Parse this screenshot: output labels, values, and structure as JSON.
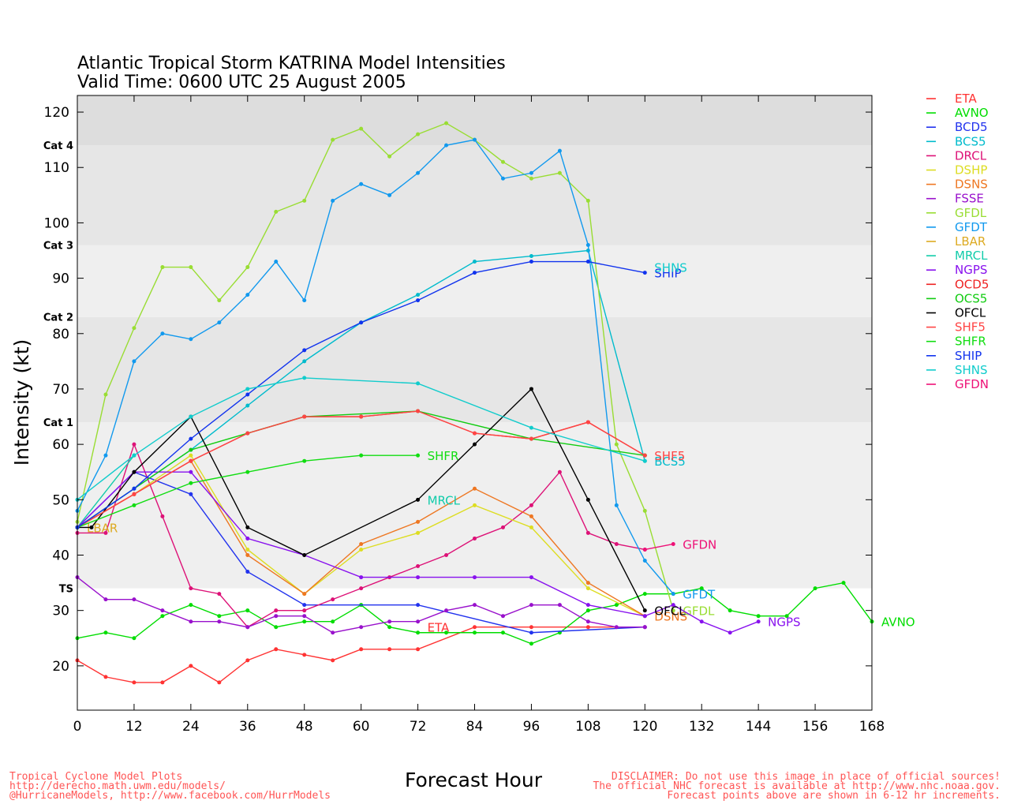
{
  "header": {
    "title_line1": "Atlantic Tropical Storm KATRINA Model Intensities",
    "title_line2": "Valid Time: 0600 UTC 25 August 2005"
  },
  "footer": {
    "left": [
      "Tropical Cyclone Model Plots",
      "http://derecho.math.uwm.edu/models/",
      "@HurricaneModels, http://www.facebook.com/HurrModels"
    ],
    "right": [
      "DISCLAIMER: Do not use this image in place of official sources!",
      "The official NHC forecast is available at http://www.nhc.noaa.gov.",
      "Forecast points above are shown in 6-12 hr increments."
    ]
  },
  "chart_data": {
    "type": "line",
    "xlabel": "Forecast Hour",
    "ylabel": "Intensity (kt)",
    "xlim": [
      0,
      168
    ],
    "ylim": [
      12,
      123
    ],
    "xticks": [
      0,
      12,
      24,
      36,
      48,
      60,
      72,
      84,
      96,
      108,
      120,
      132,
      144,
      156,
      168
    ],
    "yticks": [
      20,
      30,
      40,
      50,
      60,
      70,
      80,
      90,
      100,
      110,
      120
    ],
    "bands": [
      {
        "from": 12,
        "to": 34,
        "color": "#ffffff"
      },
      {
        "from": 34,
        "to": 64,
        "color": "#efefef"
      },
      {
        "from": 64,
        "to": 83,
        "color": "#e6e6e6"
      },
      {
        "from": 83,
        "to": 96,
        "color": "#efefef"
      },
      {
        "from": 96,
        "to": 114,
        "color": "#e6e6e6"
      },
      {
        "from": 114,
        "to": 123,
        "color": "#dddddd"
      }
    ],
    "category_labels": [
      {
        "label": "TS",
        "y": 34
      },
      {
        "label": "Cat 1",
        "y": 64
      },
      {
        "label": "Cat 2",
        "y": 83
      },
      {
        "label": "Cat 3",
        "y": 96
      },
      {
        "label": "Cat 4",
        "y": 114
      }
    ],
    "series": [
      {
        "name": "ETA",
        "color": "#ff3333",
        "label_at": [
          72,
          27
        ],
        "points": [
          [
            0,
            21
          ],
          [
            6,
            18
          ],
          [
            12,
            17
          ],
          [
            18,
            17
          ],
          [
            24,
            20
          ],
          [
            30,
            17
          ],
          [
            36,
            21
          ],
          [
            42,
            23
          ],
          [
            48,
            22
          ],
          [
            54,
            21
          ],
          [
            60,
            23
          ],
          [
            66,
            23
          ],
          [
            72,
            23
          ],
          [
            84,
            27
          ],
          [
            96,
            27
          ],
          [
            108,
            27
          ],
          [
            120,
            27
          ]
        ]
      },
      {
        "name": "AVNO",
        "color": "#00dd00",
        "label_at": [
          168,
          28
        ],
        "points": [
          [
            0,
            25
          ],
          [
            6,
            26
          ],
          [
            12,
            25
          ],
          [
            18,
            29
          ],
          [
            24,
            31
          ],
          [
            30,
            29
          ],
          [
            36,
            30
          ],
          [
            42,
            27
          ],
          [
            48,
            28
          ],
          [
            54,
            28
          ],
          [
            60,
            31
          ],
          [
            66,
            27
          ],
          [
            72,
            26
          ],
          [
            78,
            26
          ],
          [
            84,
            26
          ],
          [
            90,
            26
          ],
          [
            96,
            24
          ],
          [
            102,
            26
          ],
          [
            108,
            30
          ],
          [
            114,
            31
          ],
          [
            120,
            33
          ],
          [
            126,
            33
          ],
          [
            132,
            34
          ],
          [
            138,
            30
          ],
          [
            144,
            29
          ],
          [
            150,
            29
          ],
          [
            156,
            34
          ],
          [
            162,
            35
          ],
          [
            168,
            28
          ]
        ]
      },
      {
        "name": "BCD5",
        "color": "#2233ee",
        "label_at": null,
        "points": [
          [
            0,
            45
          ],
          [
            12,
            55
          ],
          [
            24,
            51
          ],
          [
            36,
            37
          ],
          [
            48,
            31
          ],
          [
            72,
            31
          ],
          [
            96,
            26
          ],
          [
            120,
            27
          ]
        ]
      },
      {
        "name": "BCS5",
        "color": "#00bbcc",
        "label_at": [
          120,
          57
        ],
        "points": [
          [
            0,
            45
          ],
          [
            12,
            52
          ],
          [
            24,
            59
          ],
          [
            36,
            67
          ],
          [
            48,
            75
          ],
          [
            60,
            82
          ],
          [
            72,
            87
          ],
          [
            84,
            93
          ],
          [
            96,
            94
          ],
          [
            108,
            95
          ],
          [
            120,
            57
          ]
        ]
      },
      {
        "name": "DRCL",
        "color": "#dd1177",
        "label_at": null,
        "points": [
          [
            0,
            44
          ],
          [
            6,
            44
          ],
          [
            12,
            60
          ],
          [
            18,
            47
          ],
          [
            24,
            34
          ],
          [
            30,
            33
          ],
          [
            36,
            27
          ],
          [
            42,
            30
          ],
          [
            48,
            30
          ],
          [
            54,
            32
          ],
          [
            60,
            34
          ],
          [
            66,
            36
          ],
          [
            72,
            38
          ],
          [
            78,
            40
          ],
          [
            84,
            43
          ],
          [
            90,
            45
          ],
          [
            96,
            49
          ],
          [
            102,
            55
          ],
          [
            108,
            44
          ],
          [
            114,
            42
          ],
          [
            120,
            41
          ]
        ]
      },
      {
        "name": "DSHP",
        "color": "#dddd22",
        "label_at": null,
        "points": [
          [
            0,
            45
          ],
          [
            12,
            51
          ],
          [
            24,
            58
          ],
          [
            36,
            41
          ],
          [
            48,
            33
          ],
          [
            60,
            41
          ],
          [
            72,
            44
          ],
          [
            84,
            49
          ],
          [
            96,
            45
          ],
          [
            108,
            34
          ],
          [
            120,
            29
          ]
        ]
      },
      {
        "name": "DSNS",
        "color": "#ee7722",
        "label_at": [
          120,
          29
        ],
        "points": [
          [
            0,
            45
          ],
          [
            12,
            51
          ],
          [
            24,
            57
          ],
          [
            36,
            40
          ],
          [
            48,
            33
          ],
          [
            60,
            42
          ],
          [
            72,
            46
          ],
          [
            84,
            52
          ],
          [
            96,
            47
          ],
          [
            108,
            35
          ],
          [
            120,
            29
          ]
        ]
      },
      {
        "name": "FSSE",
        "color": "#9911cc",
        "label_at": null,
        "points": [
          [
            0,
            36
          ],
          [
            6,
            32
          ],
          [
            12,
            32
          ],
          [
            18,
            30
          ],
          [
            24,
            28
          ],
          [
            30,
            28
          ],
          [
            36,
            27
          ],
          [
            42,
            29
          ],
          [
            48,
            29
          ],
          [
            54,
            26
          ],
          [
            60,
            27
          ],
          [
            66,
            28
          ],
          [
            72,
            28
          ],
          [
            78,
            30
          ],
          [
            84,
            31
          ],
          [
            90,
            29
          ],
          [
            96,
            31
          ],
          [
            102,
            31
          ],
          [
            108,
            28
          ],
          [
            114,
            27
          ],
          [
            120,
            27
          ]
        ]
      },
      {
        "name": "GFDL",
        "color": "#99dd33",
        "label_at": [
          126,
          30
        ],
        "points": [
          [
            0,
            46
          ],
          [
            6,
            69
          ],
          [
            12,
            81
          ],
          [
            18,
            92
          ],
          [
            24,
            92
          ],
          [
            30,
            86
          ],
          [
            36,
            92
          ],
          [
            42,
            102
          ],
          [
            48,
            104
          ],
          [
            54,
            115
          ],
          [
            60,
            117
          ],
          [
            66,
            112
          ],
          [
            72,
            116
          ],
          [
            78,
            118
          ],
          [
            84,
            115
          ],
          [
            90,
            111
          ],
          [
            96,
            108
          ],
          [
            102,
            109
          ],
          [
            108,
            104
          ],
          [
            114,
            60
          ],
          [
            120,
            48
          ],
          [
            126,
            30
          ]
        ]
      },
      {
        "name": "GFDT",
        "color": "#1199ee",
        "label_at": [
          126,
          33
        ],
        "points": [
          [
            0,
            48
          ],
          [
            6,
            58
          ],
          [
            12,
            75
          ],
          [
            18,
            80
          ],
          [
            24,
            79
          ],
          [
            30,
            82
          ],
          [
            36,
            87
          ],
          [
            42,
            93
          ],
          [
            48,
            86
          ],
          [
            54,
            104
          ],
          [
            60,
            107
          ],
          [
            66,
            105
          ],
          [
            72,
            109
          ],
          [
            78,
            114
          ],
          [
            84,
            115
          ],
          [
            90,
            108
          ],
          [
            96,
            109
          ],
          [
            102,
            113
          ],
          [
            108,
            96
          ],
          [
            114,
            49
          ],
          [
            120,
            39
          ],
          [
            126,
            33
          ]
        ]
      },
      {
        "name": "LBAR",
        "color": "#ddaa22",
        "label_at": [
          0,
          45
        ],
        "points": [
          [
            0,
            45
          ]
        ]
      },
      {
        "name": "MRCL",
        "color": "#11ccaa",
        "label_at": [
          72,
          50
        ],
        "points": [
          [
            0,
            45
          ],
          [
            12,
            58
          ]
        ]
      },
      {
        "name": "NGPS",
        "color": "#8811ee",
        "label_at": [
          144,
          28
        ],
        "points": [
          [
            0,
            45
          ],
          [
            12,
            55
          ],
          [
            24,
            55
          ],
          [
            36,
            43
          ],
          [
            48,
            40
          ],
          [
            60,
            36
          ],
          [
            72,
            36
          ],
          [
            84,
            36
          ],
          [
            96,
            36
          ],
          [
            108,
            31
          ],
          [
            120,
            29
          ],
          [
            126,
            31
          ],
          [
            132,
            28
          ],
          [
            138,
            26
          ],
          [
            144,
            28
          ]
        ]
      },
      {
        "name": "OCD5",
        "color": "#ee2222",
        "label_at": null,
        "points": [
          [
            0,
            45
          ],
          [
            12,
            51
          ],
          [
            24,
            57
          ],
          [
            36,
            62
          ],
          [
            48,
            65
          ],
          [
            60,
            65
          ],
          [
            72,
            66
          ],
          [
            84,
            62
          ],
          [
            96,
            61
          ],
          [
            108,
            64
          ],
          [
            120,
            58
          ]
        ]
      },
      {
        "name": "OCS5",
        "color": "#11cc11",
        "label_at": null,
        "points": [
          [
            0,
            45
          ],
          [
            12,
            52
          ],
          [
            24,
            59
          ],
          [
            36,
            62
          ],
          [
            48,
            65
          ],
          [
            72,
            66
          ],
          [
            96,
            61
          ],
          [
            120,
            58
          ]
        ]
      },
      {
        "name": "OFCL",
        "color": "#000000",
        "label_at": [
          120,
          30
        ],
        "points": [
          [
            0,
            45
          ],
          [
            3,
            45
          ],
          [
            12,
            55
          ],
          [
            24,
            65
          ],
          [
            36,
            45
          ],
          [
            48,
            40
          ],
          [
            72,
            50
          ],
          [
            84,
            60
          ],
          [
            96,
            70
          ],
          [
            108,
            50
          ],
          [
            120,
            30
          ]
        ]
      },
      {
        "name": "SHF5",
        "color": "#ff4444",
        "label_at": [
          120,
          58
        ],
        "points": [
          [
            0,
            45
          ],
          [
            12,
            51
          ],
          [
            24,
            57
          ],
          [
            36,
            62
          ],
          [
            48,
            65
          ],
          [
            60,
            65
          ],
          [
            72,
            66
          ],
          [
            84,
            62
          ],
          [
            96,
            61
          ],
          [
            108,
            64
          ],
          [
            120,
            58
          ]
        ]
      },
      {
        "name": "SHFR",
        "color": "#11dd11",
        "label_at": [
          72,
          58
        ],
        "points": [
          [
            0,
            45
          ],
          [
            12,
            49
          ],
          [
            24,
            53
          ],
          [
            36,
            55
          ],
          [
            48,
            57
          ],
          [
            60,
            58
          ],
          [
            72,
            58
          ]
        ]
      },
      {
        "name": "SHIP",
        "color": "#1133ee",
        "label_at": [
          120,
          91
        ],
        "points": [
          [
            0,
            45
          ],
          [
            12,
            52
          ],
          [
            24,
            61
          ],
          [
            36,
            69
          ],
          [
            48,
            77
          ],
          [
            60,
            82
          ],
          [
            72,
            86
          ],
          [
            84,
            91
          ],
          [
            96,
            93
          ],
          [
            108,
            93
          ],
          [
            120,
            91
          ]
        ]
      },
      {
        "name": "SHNS",
        "color": "#11cccc",
        "label_at": [
          120,
          92
        ],
        "points": [
          [
            0,
            50
          ],
          [
            12,
            58
          ],
          [
            24,
            65
          ],
          [
            36,
            70
          ],
          [
            48,
            72
          ],
          [
            72,
            71
          ],
          [
            96,
            63
          ],
          [
            120,
            57
          ]
        ]
      },
      {
        "name": "GFDN",
        "color": "#ee1177",
        "label_at": [
          126,
          42
        ],
        "points": [
          [
            120,
            41
          ],
          [
            126,
            42
          ]
        ]
      }
    ],
    "legend_placement": "right"
  }
}
